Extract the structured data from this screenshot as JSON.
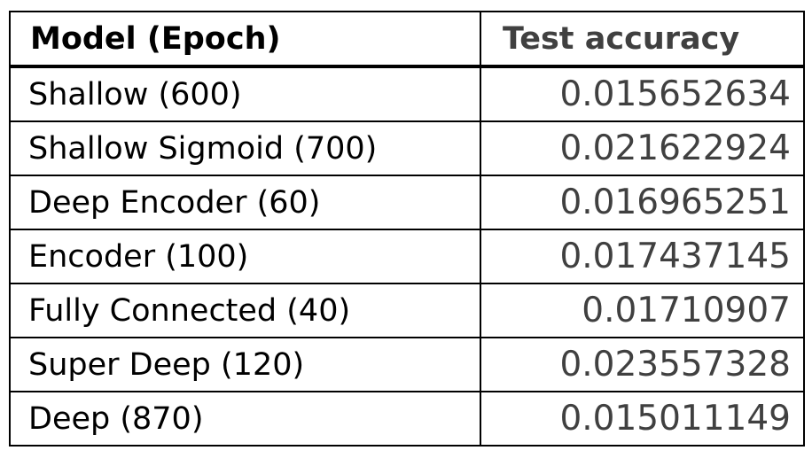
{
  "table": {
    "headers": {
      "model": "Model (Epoch)",
      "accuracy": "Test accuracy"
    },
    "rows": [
      {
        "model": "Shallow (600)",
        "accuracy": "0.015652634"
      },
      {
        "model": "Shallow Sigmoid (700)",
        "accuracy": "0.021622924"
      },
      {
        "model": "Deep Encoder (60)",
        "accuracy": "0.016965251"
      },
      {
        "model": "Encoder (100)",
        "accuracy": "0.017437145"
      },
      {
        "model": "Fully Connected (40)",
        "accuracy": "0.01710907"
      },
      {
        "model": "Super Deep (120)",
        "accuracy": "0.023557328"
      },
      {
        "model": "Deep (870)",
        "accuracy": "0.015011149"
      }
    ]
  },
  "colors": {
    "border": "#000000",
    "value_text": "#404040",
    "header_text": "#000000"
  }
}
